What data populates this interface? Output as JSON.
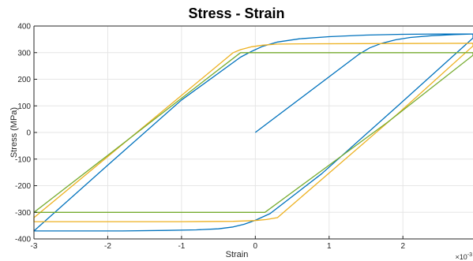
{
  "chart_data": {
    "type": "line",
    "title": "Stress - Strain",
    "xlabel": "Strain",
    "ylabel": "Stress (MPa)",
    "x_multiplier_label": "×10",
    "x_multiplier_exponent": "-3",
    "xlim": [
      -3,
      2.95
    ],
    "ylim": [
      -400,
      400
    ],
    "grid": true,
    "x_ticks": [
      -3,
      -2,
      -1,
      0,
      1,
      2
    ],
    "x_tick_labels": [
      "-3",
      "-2",
      "-1",
      "0",
      "1",
      "2"
    ],
    "y_ticks": [
      -400,
      -300,
      -200,
      -100,
      0,
      100,
      200,
      300,
      400
    ],
    "y_tick_labels": [
      "-400",
      "-300",
      "-200",
      "-100",
      "0",
      "100",
      "200",
      "300",
      "400"
    ],
    "series": [
      {
        "color": "#0072BD",
        "x": [
          0,
          1.4,
          1.55,
          1.7,
          1.9,
          2.1,
          2.4,
          2.7,
          2.95,
          2.95,
          1.95,
          0.9,
          0.2,
          0.0,
          -0.15,
          -0.3,
          -0.5,
          -0.8,
          -1.2,
          -1.8,
          -2.5,
          -3.0,
          -3.0,
          -2.0,
          -1.0,
          -0.2,
          -0.05,
          0.1,
          0.3,
          0.6,
          1.0,
          1.5,
          2.0,
          2.5,
          2.95
        ],
        "y": [
          0,
          293,
          318,
          334,
          348,
          357,
          364,
          368,
          370,
          355,
          105,
          -155,
          -305,
          -330,
          -345,
          -355,
          -362,
          -366,
          -368,
          -370,
          -370,
          -370,
          -370,
          -123,
          122,
          283,
          305,
          324,
          340,
          352,
          360,
          366,
          369,
          370,
          370
        ]
      },
      {
        "color": "#EDB120",
        "x": [
          -3.0,
          -0.3,
          -0.2,
          -0.05,
          0.1,
          0.3,
          0.6,
          1.5,
          2.95,
          2.95,
          1.95,
          0.3,
          0.15,
          0.0,
          -0.3,
          -1.0,
          -3.0,
          -3.0
        ],
        "y": [
          -320,
          300,
          311,
          322,
          328,
          332,
          333,
          334,
          335,
          325,
          75,
          -320,
          -327,
          -331,
          -334,
          -335,
          -335,
          -320
        ]
      },
      {
        "color": "#77AC30",
        "x": [
          -3.0,
          -0.2,
          2.95,
          2.95,
          1.8,
          0.13,
          -3.0,
          -3.0
        ],
        "y": [
          -300,
          300,
          300,
          290,
          40,
          -300,
          -300,
          -300
        ]
      }
    ]
  }
}
